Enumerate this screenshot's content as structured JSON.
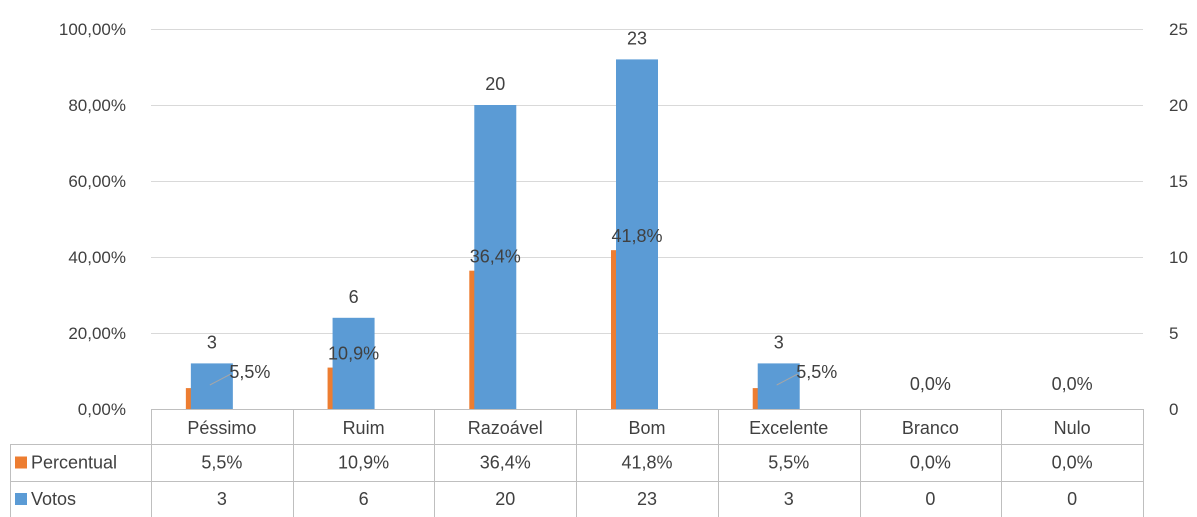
{
  "colors": {
    "percentual": "#ED7D31",
    "votos": "#5B9BD5",
    "grid": "#D9D9D9",
    "text": "#404040"
  },
  "chart_data": {
    "type": "bar",
    "categories": [
      "Péssimo",
      "Ruim",
      "Razoável",
      "Bom",
      "Excelente",
      "Branco",
      "Nulo"
    ],
    "series": [
      {
        "name": "Percentual",
        "axis": "left",
        "values": [
          5.5,
          10.9,
          36.4,
          41.8,
          5.5,
          0.0,
          0.0
        ],
        "labels": [
          "5,5%",
          "10,9%",
          "36,4%",
          "41,8%",
          "5,5%",
          "0,0%",
          "0,0%"
        ]
      },
      {
        "name": "Votos",
        "axis": "right",
        "values": [
          3,
          6,
          20,
          23,
          3,
          0,
          0
        ],
        "labels": [
          "3",
          "6",
          "20",
          "23",
          "3",
          "0",
          "0"
        ]
      }
    ],
    "left_axis": {
      "ylim": [
        0,
        100
      ],
      "ticks": [
        0,
        20,
        40,
        60,
        80,
        100
      ],
      "tick_labels": [
        "0,00%",
        "20,00%",
        "40,00%",
        "60,00%",
        "80,00%",
        "100,00%"
      ]
    },
    "right_axis": {
      "ylim": [
        0,
        25
      ],
      "ticks": [
        0,
        5,
        10,
        15,
        20,
        25
      ],
      "tick_labels": [
        "0",
        "5",
        "10",
        "15",
        "20",
        "25"
      ]
    },
    "grid": true,
    "legend": "data-table"
  }
}
